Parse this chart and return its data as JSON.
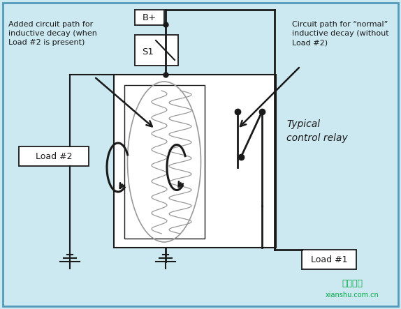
{
  "bg_color": "#cce8f0",
  "line_color": "#1a1a1a",
  "gray_line_color": "#999999",
  "border_color": "#5599bb",
  "text_color": "#1a1a1a",
  "watermark_color": "#00aa44",
  "label_bp": "B+",
  "label_s1": "S1",
  "label_load1": "Load #1",
  "label_load2": "Load #2",
  "label_relay": "Typical\ncontrol relay",
  "label_ann1": "Added circuit path for\ninductive decay (when\nLoad #2 is present)",
  "label_ann2": "Circuit path for “normal”\ninductive decay (without\nLoad #2)",
  "watermark_line1": "线束未来",
  "watermark_line2": "xianshu.com.cn"
}
